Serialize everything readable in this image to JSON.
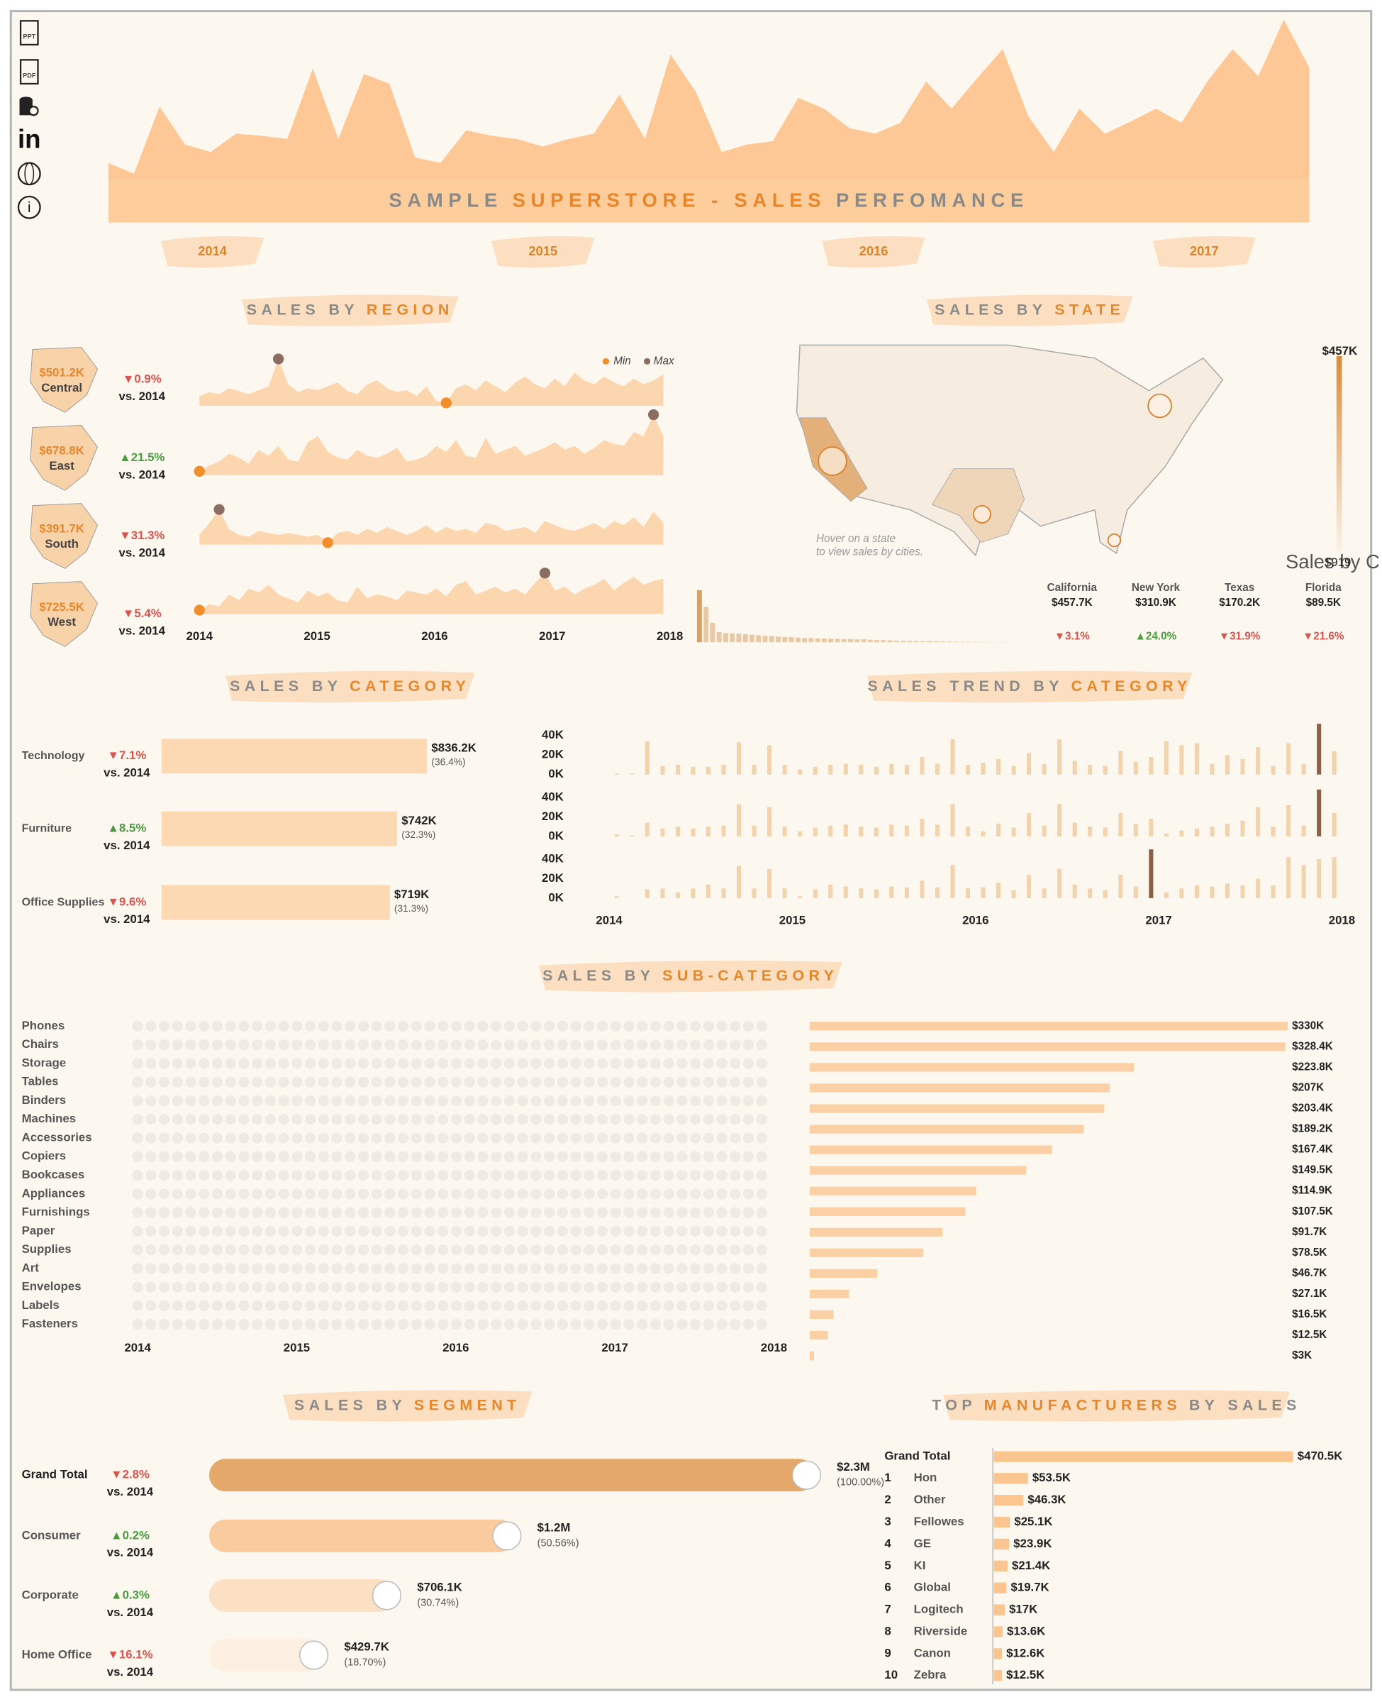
{
  "toolbar": {
    "labels": [
      "PPT",
      "PDF",
      "in",
      "i"
    ]
  },
  "header": {
    "title": [
      {
        "text": "SAMPLE",
        "color": "#8a8a8a"
      },
      {
        "text": "SUPERSTORE - SALES",
        "color": "#e8862a"
      },
      {
        "text": "PERFOMANCE",
        "color": "#8a8a8a"
      }
    ],
    "color": "#fdc896",
    "values": [
      55,
      45,
      107,
      72,
      65,
      82,
      80,
      77,
      142,
      77,
      137,
      128,
      60,
      55,
      85,
      80,
      77,
      70,
      77,
      82,
      118,
      77,
      155,
      120,
      65,
      72,
      75,
      115,
      105,
      87,
      82,
      92,
      130,
      105,
      133,
      160,
      98,
      65,
      105,
      82,
      93,
      105,
      92,
      130,
      160,
      135,
      187,
      143
    ]
  },
  "years": [
    "2014",
    "2015",
    "2016",
    "2017"
  ],
  "region": {
    "title": [
      {
        "text": "SALES BY",
        "color": "#8a8a8a"
      },
      {
        "text": "REGION",
        "color": "#e8862a"
      }
    ],
    "legend": [
      "Min",
      "Max"
    ],
    "min_color": "#f28e2b",
    "max_color": "#8c6d62",
    "color": "#fcd6ae",
    "x_labels": [
      "2014",
      "2015",
      "2016",
      "2017",
      "2018"
    ],
    "rows": [
      {
        "name": "Central",
        "sales": "$501.2K",
        "change": "▼0.9%",
        "compare": "vs. 2014",
        "values": [
          10,
          14,
          12,
          18,
          15,
          12,
          16,
          20,
          48,
          22,
          14,
          18,
          16,
          20,
          24,
          15,
          12,
          22,
          26,
          18,
          14,
          16,
          10,
          20,
          5,
          3,
          18,
          22,
          16,
          26,
          20,
          14,
          24,
          30,
          22,
          18,
          28,
          20,
          34,
          26,
          22,
          30,
          24,
          20,
          28,
          22,
          26,
          32
        ]
      },
      {
        "name": "East",
        "sales": "$678.8K",
        "change": "▲21.5%",
        "compare": "vs. 2014",
        "values": [
          4,
          10,
          14,
          22,
          18,
          12,
          26,
          20,
          30,
          16,
          14,
          34,
          40,
          24,
          18,
          16,
          26,
          20,
          18,
          22,
          28,
          14,
          16,
          20,
          30,
          24,
          36,
          20,
          18,
          38,
          22,
          26,
          30,
          20,
          24,
          28,
          34,
          26,
          30,
          22,
          28,
          36,
          32,
          30,
          44,
          40,
          62,
          40
        ]
      },
      {
        "name": "South",
        "sales": "$391.7K",
        "change": "▼31.3%",
        "compare": "vs. 2014",
        "values": [
          10,
          22,
          36,
          16,
          10,
          8,
          14,
          12,
          10,
          12,
          10,
          8,
          10,
          2,
          12,
          14,
          10,
          16,
          12,
          18,
          14,
          10,
          14,
          20,
          12,
          18,
          14,
          16,
          12,
          22,
          20,
          14,
          16,
          18,
          12,
          24,
          20,
          16,
          14,
          18,
          22,
          16,
          24,
          20,
          28,
          18,
          34,
          22
        ]
      },
      {
        "name": "West",
        "sales": "$725.5K",
        "change": "▼5.4%",
        "compare": "vs. 2014",
        "values": [
          4,
          10,
          8,
          20,
          14,
          26,
          22,
          30,
          20,
          16,
          12,
          24,
          18,
          22,
          14,
          12,
          28,
          16,
          20,
          18,
          14,
          24,
          22,
          20,
          26,
          18,
          30,
          34,
          20,
          24,
          28,
          22,
          26,
          20,
          32,
          42,
          24,
          28,
          20,
          26,
          30,
          36,
          24,
          32,
          38,
          30,
          34,
          36
        ]
      }
    ]
  },
  "state": {
    "title": [
      {
        "text": "SALES BY",
        "color": "#8a8a8a"
      },
      {
        "text": "STATE",
        "color": "#e8862a"
      }
    ],
    "hint": [
      "Hover on a state",
      "to view sales by cities."
    ],
    "scale_labels": [
      "$457K",
      "$919"
    ],
    "legend_title": "Sales by C",
    "color": "#d9a066",
    "top": [
      {
        "name": "California",
        "sales": "$457.7K",
        "value": 457.7,
        "change": "▼3.1%"
      },
      {
        "name": "New York",
        "sales": "$310.9K",
        "value": 310.9,
        "change": "▲24.0%"
      },
      {
        "name": "Texas",
        "sales": "$170.2K",
        "value": 170.2,
        "change": "▼31.9%"
      },
      {
        "name": "Florida",
        "sales": "$89.5K",
        "value": 89.5,
        "change": "▼21.6%"
      }
    ],
    "bars": [
      457.7,
      310.9,
      170.2,
      89.5,
      80.2,
      78.3,
      76.4,
      70.6,
      66.0,
      61.1,
      56.2,
      53.6,
      49.8,
      46.0,
      44.4,
      40.2,
      37.2,
      36.3,
      34.3,
      33.0,
      32.1,
      30.4,
      28.4,
      27.1,
      26.3,
      25.5,
      22.4,
      19.5,
      19.2,
      16.5,
      13.4,
      12.8,
      11.5,
      10.8,
      9.7,
      9.5,
      8.4,
      7.7,
      7.3,
      5.9,
      4.8,
      4.4,
      3.3,
      2.2,
      1.7,
      1.4,
      1.3,
      1.1,
      0.9
    ]
  },
  "category": {
    "title": [
      {
        "text": "SALES BY",
        "color": "#8a8a8a"
      },
      {
        "text": "CATEGORY",
        "color": "#e8862a"
      }
    ],
    "color": "#fdd9b3",
    "rows": [
      {
        "name": "Technology",
        "change": "▼7.1%",
        "compare": "vs. 2014",
        "value": 836.2,
        "value_label": "$836.2K",
        "share": "(36.4%)"
      },
      {
        "name": "Furniture",
        "change": "▲8.5%",
        "compare": "vs. 2014",
        "value": 742,
        "value_label": "$742K",
        "share": "(32.3%)"
      },
      {
        "name": "Office Supplies",
        "change": "▼9.6%",
        "compare": "vs. 2014",
        "value": 719,
        "value_label": "$719K",
        "share": "(31.3%)"
      }
    ]
  },
  "trend": {
    "title": [
      {
        "text": "SALES TREND BY",
        "color": "#8a8a8a"
      },
      {
        "text": "CATEGORY",
        "color": "#e8862a"
      }
    ],
    "ylim": [
      0,
      40
    ],
    "yticks": [
      {
        "value": 0,
        "label": "0K"
      },
      {
        "value": 20,
        "label": "20K"
      },
      {
        "value": 40,
        "label": "40K"
      }
    ],
    "x_labels": [
      "2014",
      "2015",
      "2016",
      "2017",
      "2018"
    ],
    "color": "#f1d3ad",
    "max_color": "#8b6148",
    "series": [
      [
        1,
        1,
        34,
        9,
        10,
        8,
        8,
        10,
        33,
        10,
        30,
        10,
        5,
        8,
        10,
        11,
        10,
        8,
        11,
        10,
        18,
        11,
        36,
        10,
        12,
        16,
        9,
        22,
        11,
        36,
        14,
        10,
        9,
        24,
        13,
        18,
        34,
        30,
        32,
        11,
        20,
        16,
        28,
        9,
        32,
        11,
        52,
        24
      ],
      [
        2,
        1,
        14,
        8,
        10,
        8,
        10,
        11,
        33,
        11,
        30,
        10,
        5,
        9,
        11,
        12,
        10,
        9,
        12,
        11,
        18,
        12,
        33,
        10,
        5,
        13,
        9,
        24,
        11,
        33,
        14,
        10,
        9,
        24,
        13,
        18,
        3,
        6,
        8,
        10,
        13,
        16,
        30,
        10,
        32,
        11,
        48,
        24
      ],
      [
        2,
        0,
        9,
        10,
        6,
        10,
        14,
        10,
        33,
        10,
        30,
        10,
        2,
        9,
        14,
        12,
        10,
        9,
        12,
        11,
        18,
        11,
        34,
        10,
        11,
        16,
        8,
        24,
        10,
        30,
        14,
        10,
        8,
        24,
        12,
        50,
        6,
        10,
        13,
        12,
        15,
        13,
        20,
        13,
        42,
        34,
        40,
        42
      ]
    ]
  },
  "subcategory": {
    "title": [
      {
        "text": "SALES BY",
        "color": "#8a8a8a"
      },
      {
        "text": "SUB-CATEGORY",
        "color": "#e8862a"
      }
    ],
    "x_labels": [
      "2014",
      "2015",
      "2016",
      "2017",
      "2018"
    ],
    "color": "#fbd0a4",
    "rows": [
      {
        "name": "Phones",
        "value": 330,
        "label": "$330K"
      },
      {
        "name": "Chairs",
        "value": 328.4,
        "label": "$328.4K"
      },
      {
        "name": "Storage",
        "value": 223.8,
        "label": "$223.8K"
      },
      {
        "name": "Tables",
        "value": 207,
        "label": "$207K"
      },
      {
        "name": "Binders",
        "value": 203.4,
        "label": "$203.4K"
      },
      {
        "name": "Machines",
        "value": 189.2,
        "label": "$189.2K"
      },
      {
        "name": "Accessories",
        "value": 167.4,
        "label": "$167.4K"
      },
      {
        "name": "Copiers",
        "value": 149.5,
        "label": "$149.5K"
      },
      {
        "name": "Bookcases",
        "value": 114.9,
        "label": "$114.9K"
      },
      {
        "name": "Appliances",
        "value": 107.5,
        "label": "$107.5K"
      },
      {
        "name": "Furnishings",
        "value": 91.7,
        "label": "$91.7K"
      },
      {
        "name": "Paper",
        "value": 78.5,
        "label": "$78.5K"
      },
      {
        "name": "Supplies",
        "value": 46.7,
        "label": "$46.7K"
      },
      {
        "name": "Art",
        "value": 27.1,
        "label": "$27.1K"
      },
      {
        "name": "Envelopes",
        "value": 16.5,
        "label": "$16.5K"
      },
      {
        "name": "Labels",
        "value": 12.5,
        "label": "$12.5K"
      },
      {
        "name": "Fasteners",
        "value": 3,
        "label": "$3K"
      }
    ]
  },
  "segment": {
    "title": [
      {
        "text": "SALES BY",
        "color": "#8a8a8a"
      },
      {
        "text": "SEGMENT",
        "color": "#e8862a"
      }
    ],
    "rows": [
      {
        "name": "Grand Total",
        "change": "▼2.8%",
        "compare": "vs. 2014",
        "sales": "$2.3M",
        "share": 100,
        "share_label": "(100.00%)",
        "color": "#e3a86a"
      },
      {
        "name": "Consumer",
        "change": "▲0.2%",
        "compare": "vs. 2014",
        "sales": "$1.2M",
        "share": 50.56,
        "share_label": "(50.56%)",
        "color": "#fbcba0"
      },
      {
        "name": "Corporate",
        "change": "▲0.3%",
        "compare": "vs. 2014",
        "sales": "$706.1K",
        "share": 30.74,
        "share_label": "(30.74%)",
        "color": "#fce0c4"
      },
      {
        "name": "Home Office",
        "change": "▼16.1%",
        "compare": "vs. 2014",
        "sales": "$429.7K",
        "share": 18.7,
        "share_label": "(18.70%)",
        "color": "#fdf0e2"
      }
    ]
  },
  "manufacturers": {
    "title": [
      {
        "text": "TOP",
        "color": "#8a8a8a"
      },
      {
        "text": "MANUFACTURERS",
        "color": "#e8862a"
      },
      {
        "text": "BY SALES",
        "color": "#8a8a8a"
      }
    ],
    "color": "#fbc58f",
    "total": {
      "name": "Grand Total",
      "value": 470.5,
      "label": "$470.5K"
    },
    "rows": [
      {
        "rank": "1",
        "name": "Hon",
        "value": 53.5,
        "label": "$53.5K"
      },
      {
        "rank": "2",
        "name": "Other",
        "value": 46.3,
        "label": "$46.3K"
      },
      {
        "rank": "3",
        "name": "Fellowes",
        "value": 25.1,
        "label": "$25.1K"
      },
      {
        "rank": "4",
        "name": "GE",
        "value": 23.9,
        "label": "$23.9K"
      },
      {
        "rank": "5",
        "name": "KI",
        "value": 21.4,
        "label": "$21.4K"
      },
      {
        "rank": "6",
        "name": "Global",
        "value": 19.7,
        "label": "$19.7K"
      },
      {
        "rank": "7",
        "name": "Logitech",
        "value": 17,
        "label": "$17K"
      },
      {
        "rank": "8",
        "name": "Riverside",
        "value": 13.6,
        "label": "$13.6K"
      },
      {
        "rank": "9",
        "name": "Canon",
        "value": 12.6,
        "label": "$12.6K"
      },
      {
        "rank": "10",
        "name": "Zebra",
        "value": 12.5,
        "label": "$12.5K"
      }
    ]
  }
}
